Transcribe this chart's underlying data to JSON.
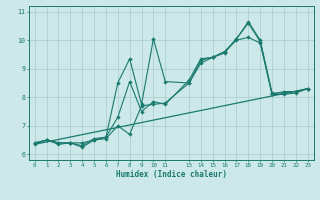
{
  "title": "",
  "xlabel": "Humidex (Indice chaleur)",
  "bg_color": "#cce8e8",
  "line_color": "#1a7a6e",
  "grid_color": "#aacccc",
  "xlim": [
    -0.5,
    23.5
  ],
  "ylim": [
    5.8,
    11.2
  ],
  "xticks": [
    0,
    1,
    2,
    3,
    4,
    5,
    6,
    7,
    8,
    9,
    10,
    11,
    13,
    14,
    15,
    16,
    17,
    18,
    19,
    20,
    21,
    22,
    23
  ],
  "yticks": [
    6,
    7,
    8,
    9,
    10,
    11
  ],
  "line1_x": [
    0,
    1,
    2,
    3,
    4,
    5,
    6,
    7,
    8,
    9,
    10,
    11,
    13,
    14,
    15,
    16,
    17,
    18,
    19,
    20,
    21,
    22,
    23
  ],
  "line1_y": [
    6.4,
    6.5,
    6.4,
    6.4,
    6.4,
    6.5,
    6.55,
    7.0,
    6.7,
    7.7,
    7.75,
    7.8,
    8.5,
    9.2,
    9.4,
    9.6,
    10.0,
    10.1,
    9.9,
    8.1,
    8.2,
    8.2,
    8.3
  ],
  "line2_x": [
    0,
    1,
    2,
    3,
    4,
    5,
    6,
    7,
    8,
    9,
    10,
    11,
    13,
    14,
    15,
    16,
    17,
    18,
    19,
    20,
    21,
    22,
    23
  ],
  "line2_y": [
    6.4,
    6.5,
    6.4,
    6.4,
    6.25,
    6.5,
    6.6,
    8.5,
    9.35,
    7.75,
    10.05,
    8.55,
    8.5,
    9.3,
    9.4,
    9.55,
    10.05,
    10.6,
    9.95,
    8.1,
    8.1,
    8.15,
    8.3
  ],
  "line3_x": [
    0,
    1,
    2,
    3,
    4,
    5,
    6,
    7,
    8,
    9,
    10,
    11,
    13,
    14,
    15,
    16,
    17,
    18,
    19,
    20,
    21,
    22,
    23
  ],
  "line3_y": [
    6.35,
    6.5,
    6.35,
    6.4,
    6.3,
    6.55,
    6.6,
    7.3,
    8.55,
    7.5,
    7.85,
    7.75,
    8.6,
    9.35,
    9.4,
    9.6,
    10.05,
    10.65,
    10.0,
    8.15,
    8.15,
    8.2,
    8.3
  ],
  "line4_x": [
    0,
    23
  ],
  "line4_y": [
    6.35,
    8.3
  ]
}
